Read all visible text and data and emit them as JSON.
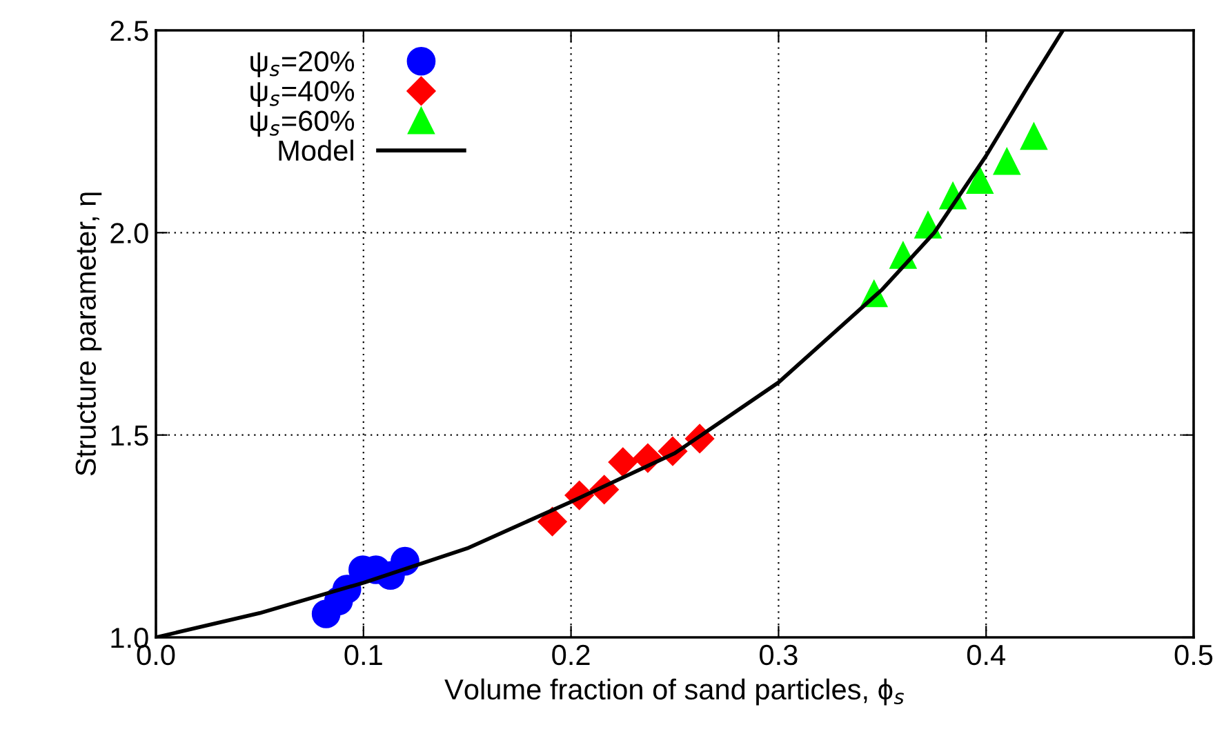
{
  "chart_data": {
    "type": "scatter",
    "xlabel": "Volume fraction of sand particles, ϕ$_{s}$",
    "ylabel": "Structure parameter, η",
    "xlim": [
      0,
      0.5
    ],
    "ylim": [
      1.0,
      2.5
    ],
    "xticks": [
      {
        "value": 0,
        "label": "0.0"
      },
      0.1,
      0.2,
      0.3,
      0.4,
      0.5
    ],
    "yticks": [
      {
        "value": 1.0,
        "label": "1.0"
      },
      1.5,
      {
        "value": 2.0,
        "label": "2.0"
      },
      2.5
    ],
    "grid": true,
    "legend": "top left",
    "series": [
      {
        "name": "ψ$_{s}$=20%",
        "color": "#0000ff",
        "marker": "circle",
        "x": [
          0.082,
          0.088,
          0.092,
          0.0997,
          0.106,
          0.113,
          0.12
        ],
        "values": [
          1.058,
          1.09,
          1.119,
          1.167,
          1.167,
          1.153,
          1.188
        ]
      },
      {
        "name": "ψ$_{s}$=40%",
        "color": "#ff0000",
        "marker": "diamond",
        "x": [
          0.191,
          0.204,
          0.216,
          0.225,
          0.237,
          0.249,
          0.262
        ],
        "values": [
          1.286,
          1.351,
          1.365,
          1.433,
          1.443,
          1.46,
          1.491
        ]
      },
      {
        "name": "ψ$_{s}$=60%",
        "color": "#00ff00",
        "marker": "triangle",
        "x": [
          0.346,
          0.36,
          0.372,
          0.384,
          0.397,
          0.41,
          0.423
        ],
        "values": [
          1.849,
          1.944,
          2.019,
          2.091,
          2.129,
          2.176,
          2.238
        ]
      },
      {
        "name": "Model",
        "type": "line",
        "color": "#000000",
        "marker": "none",
        "line_style": "solid",
        "x": [
          0,
          0.05,
          0.1,
          0.15,
          0.2,
          0.25,
          0.3,
          0.35,
          0.375,
          0.4,
          0.42,
          0.437
        ],
        "values": [
          1.0,
          1.06,
          1.135,
          1.22,
          1.335,
          1.455,
          1.63,
          1.86,
          2.0,
          2.19,
          2.36,
          2.5
        ]
      }
    ]
  }
}
